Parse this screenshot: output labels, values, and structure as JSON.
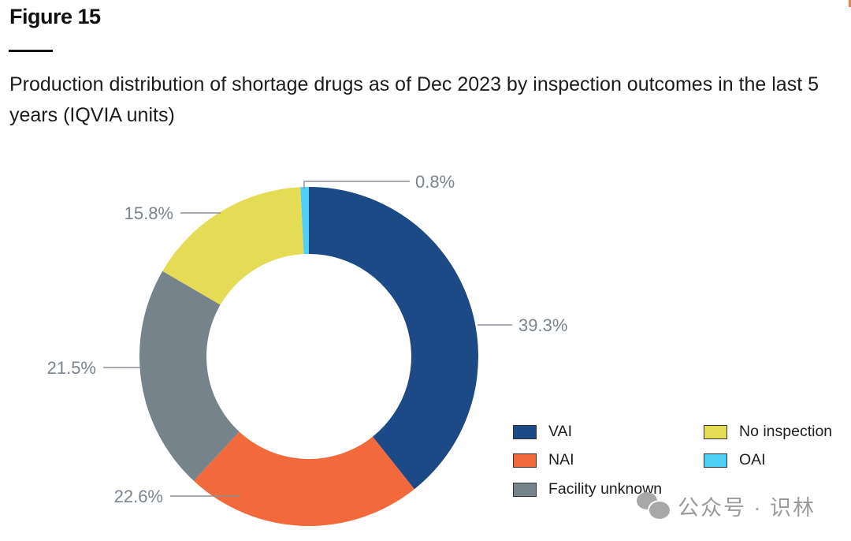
{
  "figure_label": "Figure 15",
  "title": "Production distribution of shortage drugs as of Dec 2023 by inspection outcomes in the last 5 years (IQVIA units)",
  "watermark": {
    "icon": "wechat-icon",
    "text": "公众号 · 识林"
  },
  "chart_data": {
    "type": "pie",
    "variant": "donut",
    "title": "Production distribution of shortage drugs as of Dec 2023 by inspection outcomes in the last 5 years (IQVIA units)",
    "unit": "%",
    "start": "12 o'clock",
    "direction": "clockwise",
    "legend_position": "bottom-right",
    "slices": [
      {
        "name": "VAI",
        "value": 39.3,
        "label": "39.3%",
        "color": "#1b4a86"
      },
      {
        "name": "NAI",
        "value": 22.6,
        "label": "22.6%",
        "color": "#f26a3b"
      },
      {
        "name": "Facility unknown",
        "value": 21.5,
        "label": "21.5%",
        "color": "#77838b"
      },
      {
        "name": "No inspection",
        "value": 15.8,
        "label": "15.8%",
        "color": "#e5dc55"
      },
      {
        "name": "OAI",
        "value": 0.8,
        "label": "0.8%",
        "color": "#4fd0f7"
      }
    ],
    "legend": [
      {
        "name": "VAI",
        "color": "#1b4a86"
      },
      {
        "name": "No inspection",
        "color": "#e5dc55"
      },
      {
        "name": "NAI",
        "color": "#f26a3b"
      },
      {
        "name": "OAI",
        "color": "#4fd0f7"
      },
      {
        "name": "Facility unknown",
        "color": "#77838b"
      }
    ],
    "label_color": "#7a848c"
  }
}
